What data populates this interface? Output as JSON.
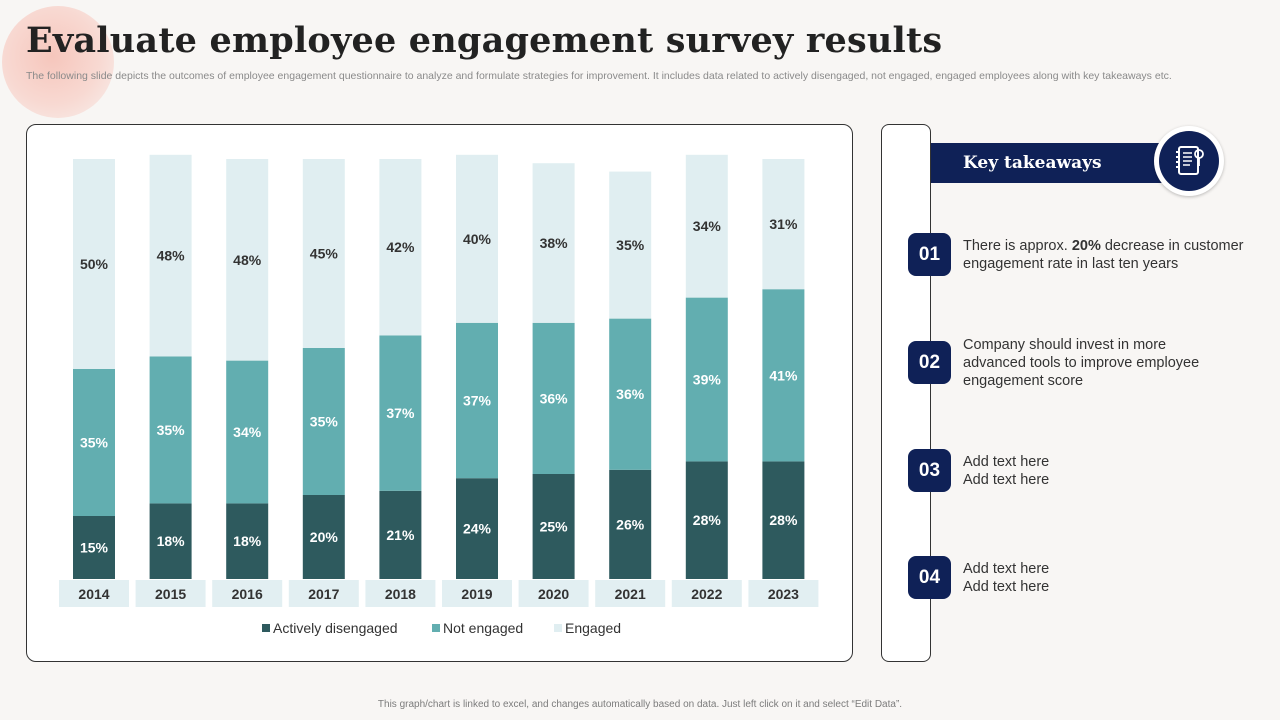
{
  "header": {
    "title": "Evaluate employee engagement survey results",
    "subtitle": "The following slide depicts the outcomes of employee engagement questionnaire to analyze and formulate strategies for improvement. It includes data related to actively  disengaged, not engaged, engaged employees along with key takeaways etc."
  },
  "colors": {
    "actively_disengaged": "#2e5a5e",
    "not_engaged": "#62aeb0",
    "engaged": "#e0eef1",
    "navy": "#0f2157"
  },
  "chart_data": {
    "type": "bar",
    "stacked": true,
    "categories": [
      "2014",
      "2015",
      "2016",
      "2017",
      "2018",
      "2019",
      "2020",
      "2021",
      "2022",
      "2023"
    ],
    "series": [
      {
        "name": "Actively disengaged",
        "values": [
          15,
          18,
          18,
          20,
          21,
          24,
          25,
          26,
          28,
          28
        ],
        "labels": [
          "15%",
          "18%",
          "18%",
          "20%",
          "21%",
          "24%",
          "25%",
          "26%",
          "28%",
          "28%"
        ]
      },
      {
        "name": "Not engaged",
        "values": [
          35,
          35,
          34,
          35,
          37,
          37,
          36,
          36,
          39,
          41
        ],
        "labels": [
          "35%",
          "35%",
          "34%",
          "35%",
          "37%",
          "37%",
          "36%",
          "36%",
          "39%",
          "41%"
        ]
      },
      {
        "name": "Engaged",
        "values": [
          50,
          48,
          48,
          45,
          42,
          40,
          38,
          35,
          34,
          31
        ],
        "labels": [
          "50%",
          "48%",
          "48%",
          "45%",
          "42%",
          "40%",
          "38%",
          "35%",
          "34%",
          "31%"
        ]
      }
    ],
    "ylim": [
      0,
      100
    ],
    "legend": "bottom",
    "grid": false
  },
  "takeaways": {
    "title": "Key takeaways",
    "items": [
      {
        "number": "01",
        "text_pre": "There is approx. ",
        "highlight": "20%",
        "text_post": " decrease in customer engagement rate in last ten years"
      },
      {
        "number": "02",
        "text": "Company should invest in more advanced tools to improve employee engagement score"
      },
      {
        "number": "03",
        "line1": "Add text here",
        "line2": "Add text here"
      },
      {
        "number": "04",
        "line1": "Add text here",
        "line2": "Add text here"
      }
    ]
  },
  "footer": "This graph/chart is linked to excel, and changes automatically based on data. Just left click on it and select “Edit Data”."
}
